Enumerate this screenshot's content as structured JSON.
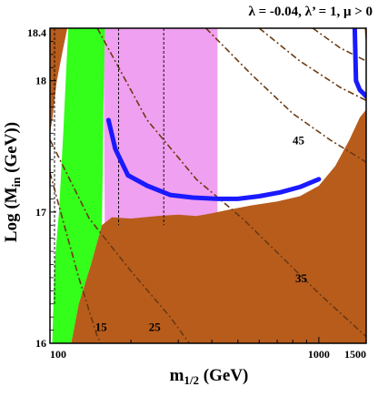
{
  "chart_data": {
    "type": "area",
    "title": "λ = -0.04, λ’ = 1,  μ > 0",
    "xlabel": "m",
    "xlabel_sub": "1/2",
    "xlabel_unit": " (GeV)",
    "ylabel": "Log (M",
    "ylabel_sub": "in",
    "ylabel_unit": " (GeV))",
    "x_scale": "log",
    "xlim": [
      100,
      1500
    ],
    "ylim": [
      16,
      18.4
    ],
    "x_ticks": [
      100,
      1000,
      1500
    ],
    "x_tick_labels": [
      "100",
      "1000",
      "1500"
    ],
    "y_ticks": [
      16,
      17,
      18,
      18.4
    ],
    "y_tick_labels": [
      "16",
      "17",
      "18",
      "18.4"
    ],
    "colors": {
      "brown": "#b85c1c",
      "green": "#33ff1a",
      "pink": "#f0a0f0",
      "blue": "#1a1aff",
      "contour": "#6b3a12",
      "axis": "#000000",
      "background": "#ffffff"
    },
    "regions": [
      {
        "color": "pink",
        "points": [
          [
            158,
            18.4
          ],
          [
            420,
            18.4
          ],
          [
            420,
            17.0
          ],
          [
            400,
            16.96
          ],
          [
            320,
            16.9
          ],
          [
            250,
            16.92
          ],
          [
            200,
            16.88
          ],
          [
            160,
            16.8
          ]
        ]
      },
      {
        "color": "green",
        "points": [
          [
            102,
            16
          ],
          [
            104,
            16.6
          ],
          [
            108,
            17.0
          ],
          [
            112,
            17.6
          ],
          [
            115,
            18.1
          ],
          [
            117,
            18.4
          ],
          [
            160,
            18.4
          ],
          [
            158,
            17.8
          ],
          [
            157,
            17.3
          ],
          [
            156,
            16.9
          ],
          [
            142,
            16.6
          ],
          [
            128,
            16.3
          ],
          [
            120,
            16
          ]
        ]
      },
      {
        "color": "brown",
        "points": [
          [
            100,
            16
          ],
          [
            120,
            16
          ],
          [
            128,
            16.3
          ],
          [
            142,
            16.6
          ],
          [
            156,
            16.9
          ],
          [
            170,
            16.96
          ],
          [
            200,
            16.95
          ],
          [
            250,
            16.97
          ],
          [
            300,
            16.98
          ],
          [
            350,
            16.97
          ],
          [
            400,
            16.99
          ],
          [
            470,
            17.02
          ],
          [
            560,
            17.05
          ],
          [
            700,
            17.08
          ],
          [
            850,
            17.12
          ],
          [
            1000,
            17.2
          ],
          [
            1150,
            17.35
          ],
          [
            1300,
            17.55
          ],
          [
            1420,
            17.72
          ],
          [
            1500,
            17.78
          ],
          [
            1500,
            16
          ]
        ]
      },
      {
        "color": "brown",
        "points": [
          [
            100,
            18.4
          ],
          [
            116,
            18.4
          ],
          [
            112,
            18.25
          ],
          [
            106,
            18.0
          ],
          [
            102,
            17.7
          ],
          [
            100,
            17.6
          ]
        ]
      },
      {
        "color": "brown",
        "points": [
          [
            1480,
            18.4
          ],
          [
            1500,
            18.4
          ],
          [
            1500,
            18.28
          ],
          [
            1490,
            18.33
          ]
        ]
      }
    ],
    "boundary_line": {
      "color": "blue",
      "points": [
        [
          165,
          17.7
        ],
        [
          175,
          17.48
        ],
        [
          195,
          17.28
        ],
        [
          230,
          17.2
        ],
        [
          280,
          17.13
        ],
        [
          340,
          17.11
        ],
        [
          420,
          17.1
        ],
        [
          500,
          17.1
        ],
        [
          600,
          17.12
        ],
        [
          720,
          17.15
        ],
        [
          850,
          17.19
        ],
        [
          1000,
          17.25
        ]
      ]
    },
    "boundary_line_2": {
      "color": "blue",
      "points": [
        [
          1360,
          18.4
        ],
        [
          1375,
          18.0
        ],
        [
          1420,
          17.93
        ],
        [
          1470,
          17.9
        ],
        [
          1500,
          17.88
        ]
      ]
    },
    "contours": [
      {
        "label": "15",
        "points": [
          [
            100,
            17.3
          ],
          [
            113,
            16.9
          ],
          [
            128,
            16.5
          ],
          [
            150,
            16.05
          ],
          [
            155,
            16
          ]
        ]
      },
      {
        "label": "25",
        "points": [
          [
            100,
            17.55
          ],
          [
            140,
            16.95
          ],
          [
            200,
            16.55
          ],
          [
            280,
            16.2
          ],
          [
            330,
            16
          ]
        ]
      },
      {
        "label": "35",
        "points": [
          [
            150,
            18.4
          ],
          [
            230,
            17.7
          ],
          [
            350,
            17.25
          ],
          [
            520,
            16.95
          ],
          [
            760,
            16.62
          ],
          [
            1000,
            16.38
          ],
          [
            1500,
            16.05
          ]
        ]
      },
      {
        "label": "45",
        "points": [
          [
            380,
            18.4
          ],
          [
            560,
            18.05
          ],
          [
            800,
            17.75
          ],
          [
            1100,
            17.55
          ],
          [
            1500,
            17.38
          ]
        ]
      },
      {
        "label": "",
        "points": [
          [
            600,
            18.4
          ],
          [
            850,
            18.15
          ],
          [
            1200,
            17.95
          ],
          [
            1500,
            17.85
          ]
        ]
      },
      {
        "label": "",
        "points": [
          [
            950,
            18.4
          ],
          [
            1200,
            18.25
          ],
          [
            1500,
            18.15
          ]
        ]
      }
    ],
    "contour_labels": [
      {
        "text": "15",
        "x": 155,
        "y": 16.13
      },
      {
        "text": "25",
        "x": 245,
        "y": 16.13
      },
      {
        "text": "35",
        "x": 860,
        "y": 16.5
      },
      {
        "text": "45",
        "x": 840,
        "y": 17.55
      }
    ],
    "dashed_lines": [
      {
        "points": [
          [
            104,
            18.4
          ],
          [
            104,
            16.3
          ]
        ]
      },
      {
        "points": [
          [
            180,
            18.4
          ],
          [
            180,
            16.9
          ]
        ]
      },
      {
        "points": [
          [
            265,
            18.4
          ],
          [
            265,
            16.9
          ]
        ]
      }
    ]
  }
}
